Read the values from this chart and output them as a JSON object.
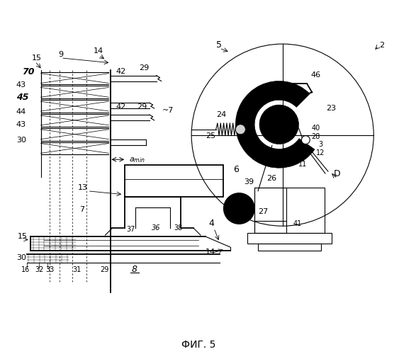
{
  "title": "ФИГ. 5",
  "bg_color": "#ffffff",
  "fig_width": 5.63,
  "fig_height": 5.0,
  "dpi": 100
}
